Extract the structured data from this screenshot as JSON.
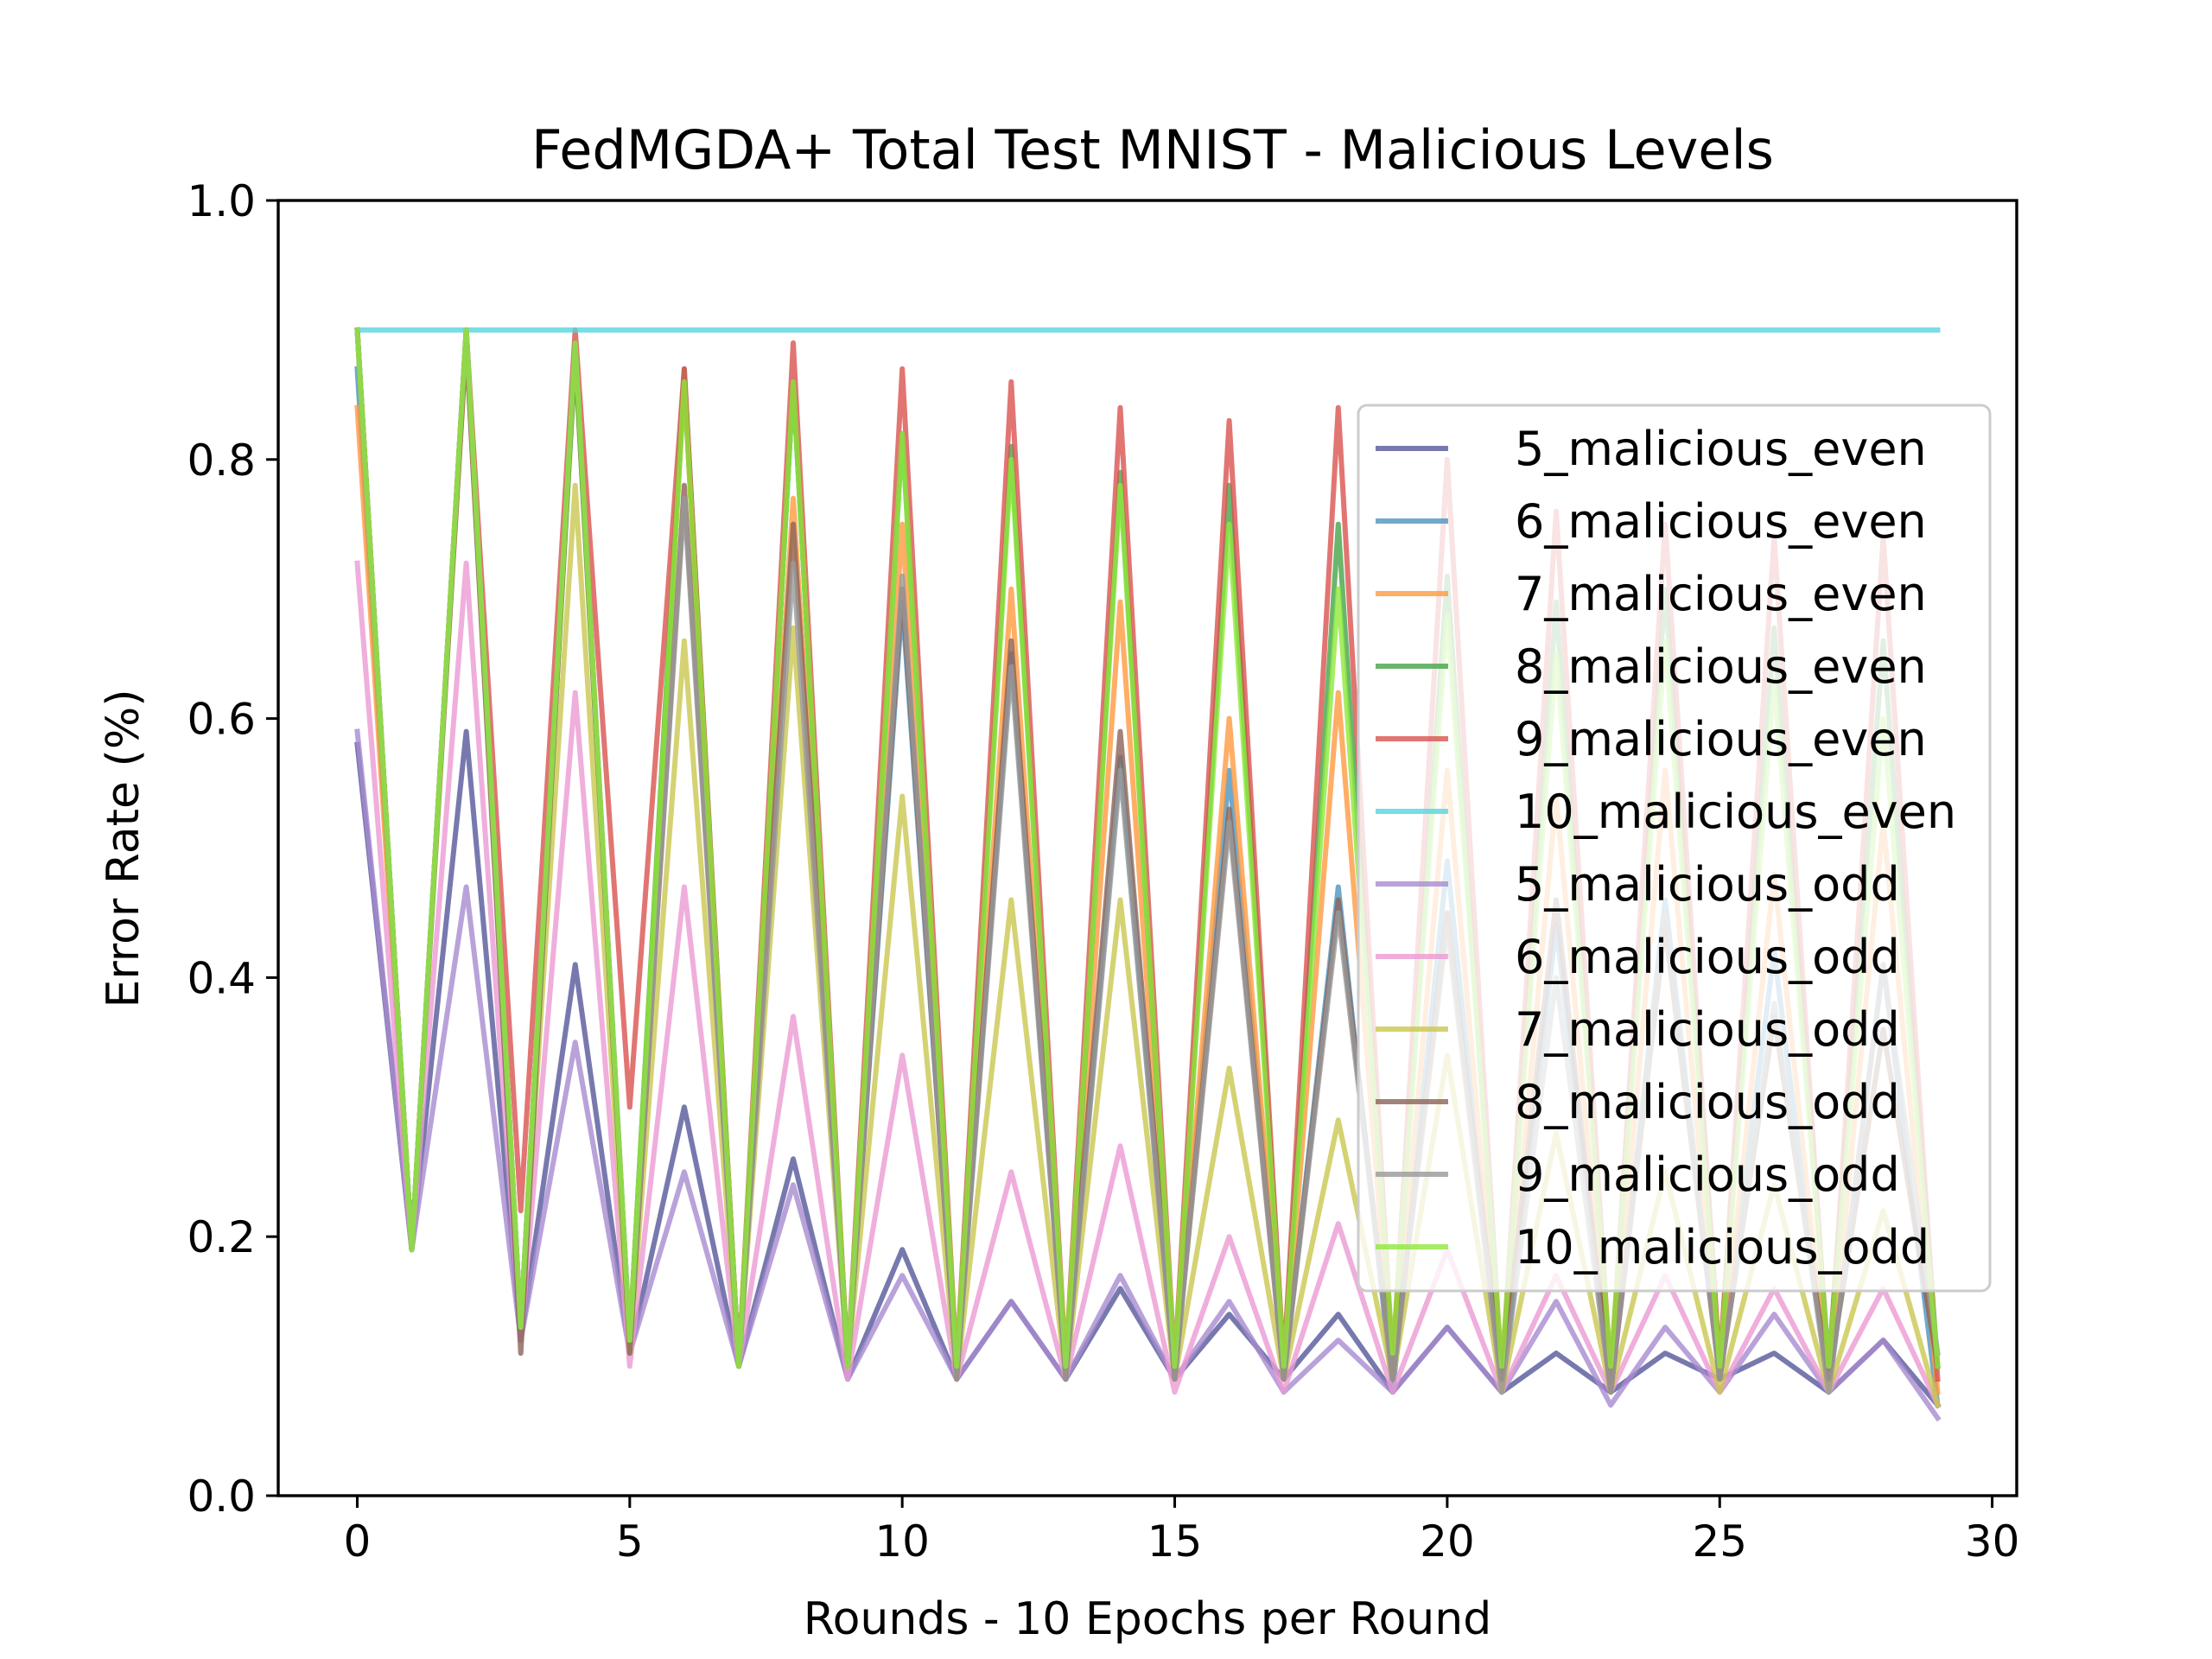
{
  "chart_data": {
    "type": "line",
    "title": "FedMGDA+ Total Test MNIST - Malicious Levels",
    "xlabel": "Rounds - 10 Epochs per Round",
    "ylabel": "Error Rate (%)",
    "xlim": [
      -1.45,
      30.45
    ],
    "ylim": [
      0.0,
      1.0
    ],
    "xticks": [
      0,
      5,
      10,
      15,
      20,
      25,
      30
    ],
    "yticks": [
      0.0,
      0.2,
      0.4,
      0.6,
      0.8,
      1.0
    ],
    "xtick_labels": [
      "0",
      "5",
      "10",
      "15",
      "20",
      "25",
      "30"
    ],
    "ytick_labels": [
      "0.0",
      "0.2",
      "0.4",
      "0.6",
      "0.8",
      "1.0"
    ],
    "grid": false,
    "legend_position": "center-right",
    "x": [
      0,
      1,
      2,
      3,
      4,
      5,
      6,
      7,
      8,
      9,
      10,
      11,
      12,
      13,
      14,
      15,
      16,
      17,
      18,
      19,
      20,
      21,
      22,
      23,
      24,
      25,
      26,
      27,
      28,
      29
    ],
    "series": [
      {
        "name": "5_malicious_even",
        "color": "#55589a",
        "values": [
          0.58,
          0.19,
          0.59,
          0.12,
          0.41,
          0.11,
          0.3,
          0.1,
          0.26,
          0.09,
          0.19,
          0.09,
          0.15,
          0.09,
          0.16,
          0.09,
          0.14,
          0.09,
          0.14,
          0.08,
          0.13,
          0.08,
          0.11,
          0.08,
          0.11,
          0.09,
          0.11,
          0.08,
          0.12,
          0.07
        ]
      },
      {
        "name": "6_malicious_even",
        "color": "#4b93bf",
        "values": [
          0.87,
          0.19,
          0.9,
          0.13,
          0.89,
          0.12,
          0.86,
          0.1,
          0.86,
          0.1,
          0.69,
          0.09,
          0.65,
          0.09,
          0.57,
          0.09,
          0.56,
          0.09,
          0.47,
          0.08,
          0.49,
          0.08,
          0.44,
          0.08,
          0.46,
          0.09,
          0.42,
          0.08,
          0.41,
          0.07
        ]
      },
      {
        "name": "7_malicious_even",
        "color": "#ff9a40",
        "values": [
          0.84,
          0.19,
          0.89,
          0.13,
          0.88,
          0.12,
          0.86,
          0.1,
          0.77,
          0.1,
          0.75,
          0.09,
          0.7,
          0.09,
          0.69,
          0.09,
          0.6,
          0.09,
          0.62,
          0.09,
          0.56,
          0.08,
          0.54,
          0.08,
          0.56,
          0.09,
          0.48,
          0.08,
          0.52,
          0.08
        ]
      },
      {
        "name": "8_malicious_even",
        "color": "#45a449",
        "values": [
          0.9,
          0.19,
          0.9,
          0.13,
          0.88,
          0.12,
          0.87,
          0.1,
          0.86,
          0.1,
          0.82,
          0.1,
          0.81,
          0.09,
          0.79,
          0.09,
          0.78,
          0.1,
          0.75,
          0.1,
          0.71,
          0.09,
          0.69,
          0.09,
          0.7,
          0.1,
          0.67,
          0.1,
          0.66,
          0.1
        ]
      },
      {
        "name": "9_malicious_even",
        "color": "#d9534f",
        "values": [
          0.9,
          0.19,
          0.9,
          0.22,
          0.9,
          0.3,
          0.87,
          0.1,
          0.89,
          0.1,
          0.87,
          0.1,
          0.86,
          0.1,
          0.84,
          0.1,
          0.83,
          0.1,
          0.84,
          0.1,
          0.8,
          0.09,
          0.76,
          0.09,
          0.75,
          0.1,
          0.74,
          0.09,
          0.74,
          0.09
        ]
      },
      {
        "name": "10_malicious_even",
        "color": "#56d4de",
        "values": [
          0.9,
          0.9,
          0.9,
          0.9,
          0.9,
          0.9,
          0.9,
          0.9,
          0.9,
          0.9,
          0.9,
          0.9,
          0.9,
          0.9,
          0.9,
          0.9,
          0.9,
          0.9,
          0.9,
          0.9,
          0.9,
          0.9,
          0.9,
          0.9,
          0.9,
          0.9,
          0.9,
          0.9,
          0.9,
          0.9
        ]
      },
      {
        "name": "5_malicious_odd",
        "color": "#a88bd0",
        "values": [
          0.59,
          0.19,
          0.47,
          0.12,
          0.35,
          0.11,
          0.25,
          0.1,
          0.24,
          0.09,
          0.17,
          0.09,
          0.15,
          0.09,
          0.17,
          0.09,
          0.15,
          0.08,
          0.12,
          0.08,
          0.13,
          0.08,
          0.15,
          0.07,
          0.13,
          0.08,
          0.14,
          0.08,
          0.12,
          0.06
        ]
      },
      {
        "name": "6_malicious_odd",
        "color": "#eb9ad3",
        "values": [
          0.72,
          0.19,
          0.72,
          0.12,
          0.62,
          0.1,
          0.47,
          0.1,
          0.37,
          0.09,
          0.34,
          0.09,
          0.25,
          0.09,
          0.27,
          0.08,
          0.2,
          0.08,
          0.21,
          0.08,
          0.19,
          0.08,
          0.17,
          0.08,
          0.17,
          0.08,
          0.16,
          0.08,
          0.16,
          0.07
        ]
      },
      {
        "name": "7_malicious_odd",
        "color": "#c9c74f",
        "values": [
          0.9,
          0.19,
          0.9,
          0.13,
          0.78,
          0.11,
          0.66,
          0.1,
          0.67,
          0.1,
          0.54,
          0.09,
          0.46,
          0.09,
          0.46,
          0.09,
          0.33,
          0.09,
          0.29,
          0.09,
          0.34,
          0.08,
          0.28,
          0.08,
          0.25,
          0.08,
          0.24,
          0.08,
          0.22,
          0.07
        ]
      },
      {
        "name": "8_malicious_odd",
        "color": "#8b6358",
        "values": [
          0.9,
          0.19,
          0.89,
          0.11,
          0.89,
          0.11,
          0.78,
          0.1,
          0.75,
          0.1,
          0.7,
          0.09,
          0.66,
          0.09,
          0.59,
          0.09,
          0.53,
          0.09,
          0.46,
          0.09,
          0.45,
          0.09,
          0.46,
          0.08,
          0.44,
          0.09,
          0.37,
          0.09,
          0.36,
          0.1
        ]
      },
      {
        "name": "9_malicious_odd",
        "color": "#999999",
        "values": [
          0.9,
          0.19,
          0.9,
          0.13,
          0.89,
          0.12,
          0.77,
          0.1,
          0.72,
          0.1,
          0.71,
          0.09,
          0.64,
          0.09,
          0.56,
          0.09,
          0.52,
          0.09,
          0.45,
          0.09,
          0.44,
          0.08,
          0.4,
          0.08,
          0.45,
          0.09,
          0.38,
          0.08,
          0.41,
          0.11
        ]
      },
      {
        "name": "10_malicious_odd",
        "color": "#8ee93b",
        "values": [
          0.9,
          0.19,
          0.9,
          0.13,
          0.89,
          0.12,
          0.86,
          0.1,
          0.86,
          0.1,
          0.82,
          0.1,
          0.8,
          0.1,
          0.78,
          0.1,
          0.75,
          0.1,
          0.7,
          0.11,
          0.68,
          0.1,
          0.65,
          0.1,
          0.66,
          0.1,
          0.63,
          0.1,
          0.6,
          0.1
        ]
      }
    ]
  }
}
